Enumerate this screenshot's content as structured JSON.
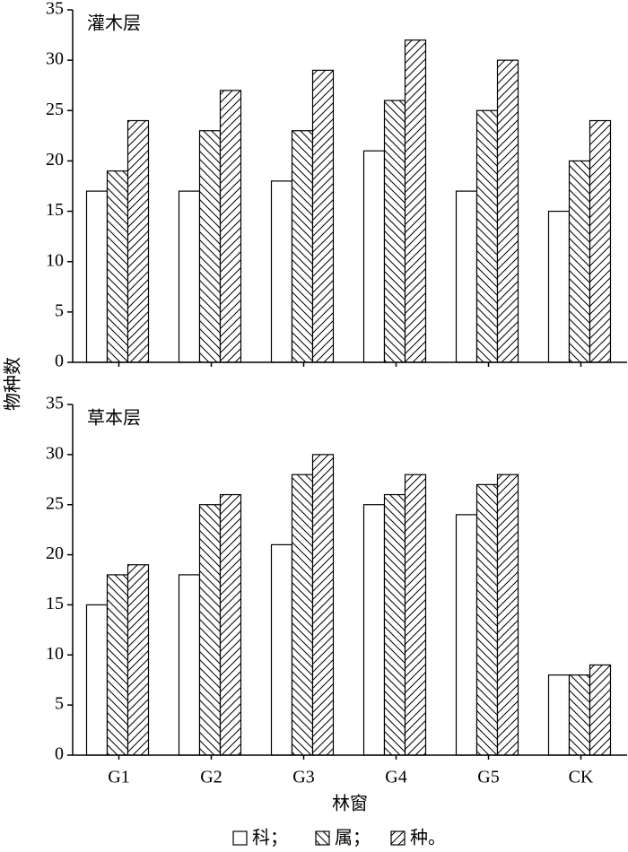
{
  "chart_data": [
    {
      "type": "bar",
      "title": "灌木层",
      "ylabel": "物种数",
      "categories": [
        "G1",
        "G2",
        "G3",
        "G4",
        "G5",
        "CK"
      ],
      "series": [
        {
          "pattern": "none",
          "values": [
            17,
            17,
            18,
            21,
            17,
            15
          ]
        },
        {
          "pattern": "back",
          "values": [
            19,
            23,
            23,
            26,
            25,
            20
          ]
        },
        {
          "pattern": "forward",
          "values": [
            24,
            27,
            29,
            32,
            30,
            24
          ]
        }
      ],
      "ylim": [
        0,
        35
      ],
      "yticks": [
        0,
        5,
        10,
        15,
        20,
        25,
        30,
        35
      ]
    },
    {
      "type": "bar",
      "title": "草本层",
      "xlabel": "林窗",
      "categories": [
        "G1",
        "G2",
        "G3",
        "G4",
        "G5",
        "CK"
      ],
      "series": [
        {
          "name": "科；",
          "pattern": "none",
          "values": [
            15,
            18,
            21,
            25,
            24,
            8
          ]
        },
        {
          "name": "属；",
          "pattern": "back",
          "values": [
            18,
            25,
            28,
            26,
            27,
            8
          ]
        },
        {
          "name": "种。",
          "pattern": "forward",
          "values": [
            19,
            26,
            30,
            28,
            28,
            9
          ]
        }
      ],
      "ylim": [
        0,
        35
      ],
      "yticks": [
        0,
        5,
        10,
        15,
        20,
        25,
        30,
        35
      ]
    }
  ]
}
